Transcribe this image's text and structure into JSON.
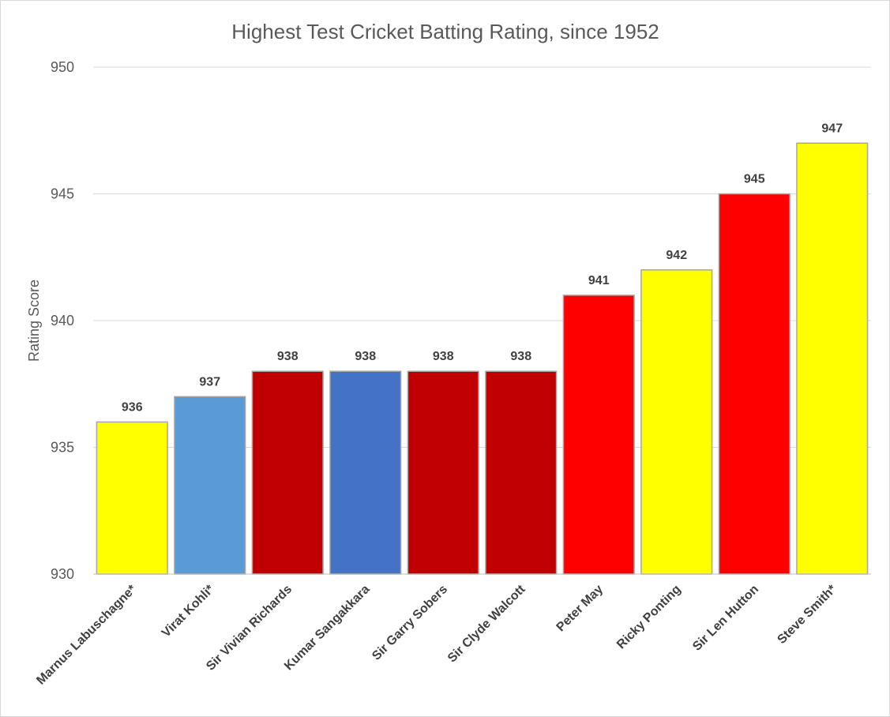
{
  "chart_data": {
    "type": "bar",
    "title": "Highest Test Cricket Batting Rating, since 1952",
    "xlabel": "",
    "ylabel": "Rating Score",
    "ylim": [
      930,
      950
    ],
    "yticks": [
      930,
      935,
      940,
      945,
      950
    ],
    "grid": true,
    "categories": [
      "Marnus Labuschagne*",
      "Virat Kohli*",
      "Sir Vivian Richards",
      "Kumar Sangakkara",
      "Sir Garry Sobers",
      "Sir Clyde Walcott",
      "Peter May",
      "Ricky Ponting",
      "Sir Len Hutton",
      "Steve Smith*"
    ],
    "values": [
      936,
      937,
      938,
      938,
      938,
      938,
      941,
      942,
      945,
      947
    ],
    "colors": [
      "#ffff00",
      "#5b9bd5",
      "#c00000",
      "#4472c4",
      "#c00000",
      "#c00000",
      "#ff0000",
      "#ffff00",
      "#ff0000",
      "#ffff00"
    ]
  }
}
